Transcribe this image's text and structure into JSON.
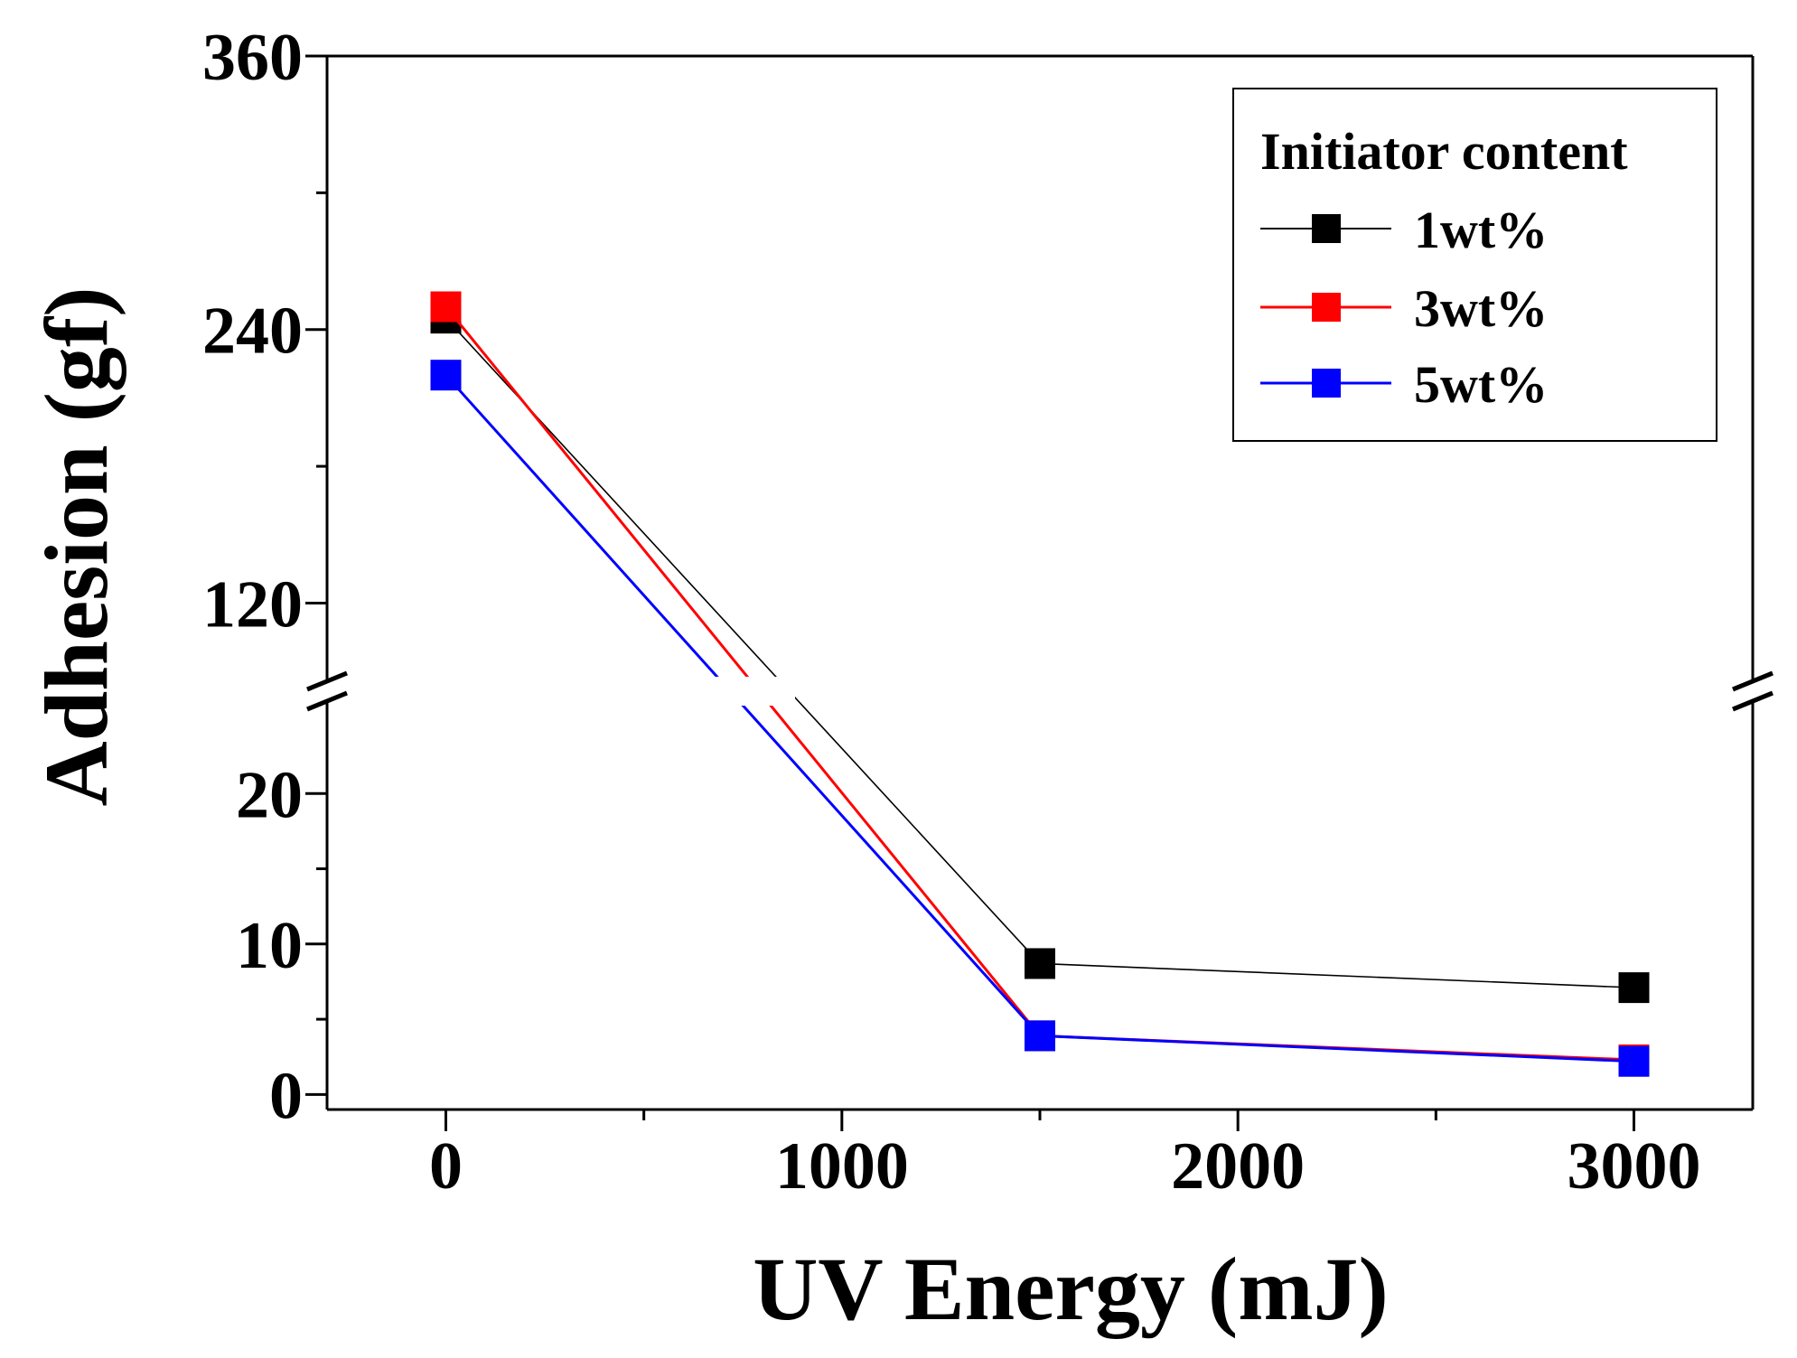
{
  "chart_data": {
    "type": "line",
    "x": [
      0,
      1500,
      3000
    ],
    "series": [
      {
        "name": "1wt%",
        "color": "#000000",
        "values": [
          245,
          8.7,
          7.1
        ]
      },
      {
        "name": "3wt%",
        "color": "#ff0000",
        "values": [
          250,
          3.9,
          2.3
        ]
      },
      {
        "name": "5wt%",
        "color": "#0000ff",
        "values": [
          220,
          3.9,
          2.2
        ]
      }
    ],
    "title": "",
    "xlabel": "UV Energy (mJ)",
    "ylabel": "Adhesion (gf)",
    "xlim": [
      -300,
      3300
    ],
    "x_ticks": [
      0,
      1000,
      2000,
      3000
    ],
    "x_tick_labels": [
      "0",
      "1000",
      "2000",
      "3000"
    ],
    "y_axis_break": true,
    "y_lower_range": [
      -1,
      25
    ],
    "y_upper_range": [
      96,
      360
    ],
    "y_lower_ticks": [
      0,
      10,
      20
    ],
    "y_lower_tick_labels": [
      "0",
      "10",
      "20"
    ],
    "y_upper_ticks": [
      120,
      240,
      360
    ],
    "y_upper_tick_labels": [
      "120",
      "240",
      "360"
    ],
    "grid": false,
    "legend": {
      "title": "Initiator content",
      "position": "top-right"
    }
  }
}
